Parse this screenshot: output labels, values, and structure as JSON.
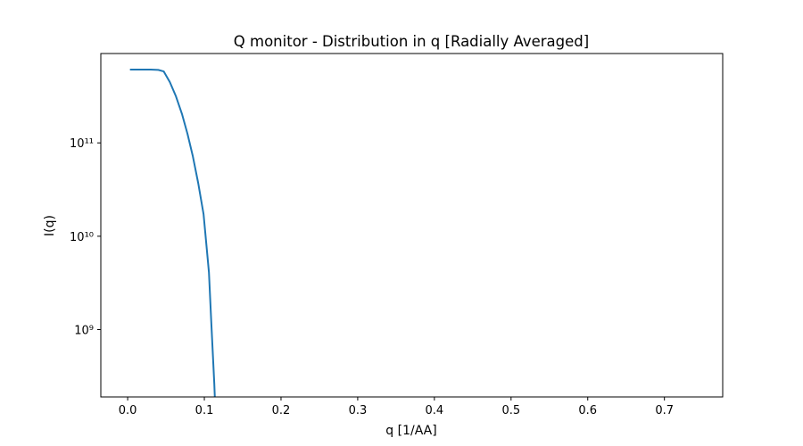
{
  "chart_data": {
    "type": "line",
    "title": "Q monitor - Distribution in q [Radially Averaged]",
    "x_label": "q [1/AA]",
    "y_label": "I(q)",
    "y_scale": "log",
    "x": [
      0.003,
      0.01,
      0.02,
      0.03,
      0.04,
      0.047,
      0.055,
      0.063,
      0.071,
      0.078,
      0.085,
      0.092,
      0.099,
      0.106,
      0.109,
      0.113,
      0.115
    ],
    "series": [
      {
        "color": "#1f77b4",
        "values": [
          609000000000,
          609000000000,
          609000000000,
          609000000000,
          605000000000,
          583000000000,
          448000000000,
          315000000000,
          202000000000,
          125000000000,
          71900000000,
          37100000000,
          17200000000,
          4100000000,
          1220000000,
          261000000,
          100000000
        ]
      }
    ],
    "xlim": [
      -0.035,
      0.776
    ],
    "xticks": [
      {
        "value": 0,
        "label": "0.0"
      },
      0.1,
      0.2,
      0.3,
      0.4,
      0.5,
      0.6,
      0.7
    ],
    "ylim": [
      190000000,
      906000000000
    ],
    "yticks": [
      {
        "value": 1000000000,
        "label": "10⁹"
      },
      {
        "value": 10000000000,
        "label": "10¹⁰"
      },
      {
        "value": 100000000000,
        "label": "10¹¹"
      }
    ]
  }
}
